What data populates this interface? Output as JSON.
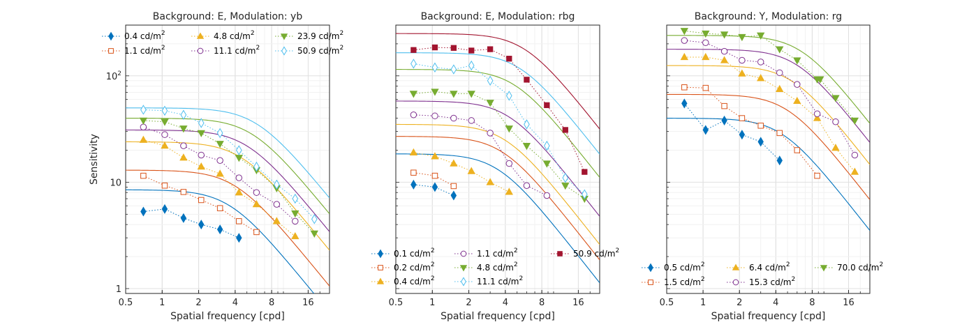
{
  "chart_data": [
    {
      "type": "line",
      "title": "Background: E, Modulation: yb",
      "xlabel": "Spatial frequency [cpd]",
      "ylabel": "Sensitivity",
      "xscale": "log",
      "yscale": "log",
      "xlim": [
        0.5,
        24
      ],
      "ylim": [
        0.9,
        300
      ],
      "xticks": [
        0.5,
        1,
        2,
        4,
        8,
        16
      ],
      "xtick_labels": [
        "0.5",
        "1",
        "2",
        "4",
        "8",
        "16"
      ],
      "yticks": [
        1,
        10,
        100
      ],
      "ytick_labels": [
        "1",
        "10",
        "10²"
      ],
      "grid": true,
      "legend": {
        "placement": "top",
        "columns": 3
      },
      "series": [
        {
          "name": "0.4 cd/m²",
          "label_main": "0.4 cd/m",
          "label_sup": "2",
          "color": "#0072BD",
          "marker": "diamond-filled",
          "x": [
            0.7,
            1.05,
            1.5,
            2.1,
            3.0,
            4.3
          ],
          "y": [
            5.3,
            5.6,
            4.6,
            4.0,
            3.6,
            3.0
          ],
          "fit": {
            "peak": 8.5,
            "fc": 3.6,
            "n": 1.4
          }
        },
        {
          "name": "1.1 cd/m²",
          "label_main": "1.1 cd/m",
          "label_sup": "2",
          "color": "#D95319",
          "marker": "square-open",
          "x": [
            0.7,
            1.05,
            1.5,
            2.1,
            3.0,
            4.3,
            6.0
          ],
          "y": [
            11.5,
            9.3,
            8.1,
            6.8,
            5.7,
            4.3,
            3.4
          ],
          "fit": {
            "peak": 13,
            "fc": 4.0,
            "n": 1.4
          }
        },
        {
          "name": "4.8 cd/m²",
          "label_main": "4.8 cd/m",
          "label_sup": "2",
          "color": "#EDB120",
          "marker": "triangle-up-filled",
          "x": [
            0.7,
            1.05,
            1.5,
            2.1,
            3.0,
            4.3,
            6.0,
            8.8,
            12.5
          ],
          "y": [
            25,
            22,
            17,
            14,
            12,
            8,
            6.2,
            4.3,
            3.1
          ],
          "fit": {
            "peak": 24,
            "fc": 4.5,
            "n": 1.4
          }
        },
        {
          "name": "11.1 cd/m²",
          "label_main": "11.1 cd/m",
          "label_sup": "2",
          "color": "#7E2F8E",
          "marker": "circle-open",
          "x": [
            0.7,
            1.05,
            1.5,
            2.1,
            3.0,
            4.3,
            6.0,
            8.8,
            12.5
          ],
          "y": [
            33,
            28,
            22,
            18,
            16,
            11,
            8,
            6.2,
            4.3
          ],
          "fit": {
            "peak": 31,
            "fc": 5.0,
            "n": 1.4
          }
        },
        {
          "name": "23.9 cd/m²",
          "label_main": "23.9 cd/m",
          "label_sup": "2",
          "color": "#77AC30",
          "marker": "triangle-down-filled",
          "x": [
            0.7,
            1.05,
            1.5,
            2.1,
            3.0,
            4.3,
            6.0,
            8.8,
            12.5,
            18
          ],
          "y": [
            38,
            37,
            32,
            29,
            23,
            17,
            13,
            8.8,
            5.1,
            3.3
          ],
          "fit": {
            "peak": 40,
            "fc": 5.5,
            "n": 1.4
          }
        },
        {
          "name": "50.9 cd/m²",
          "label_main": "50.9 cd/m",
          "label_sup": "2",
          "color": "#4DBEEE",
          "marker": "diamond-open",
          "x": [
            0.7,
            1.05,
            1.5,
            2.1,
            3.0,
            4.3,
            6.0,
            8.8,
            12.5,
            18
          ],
          "y": [
            48,
            47,
            43,
            36,
            29,
            20,
            14,
            9.5,
            7,
            4.5
          ],
          "fit": {
            "peak": 50,
            "fc": 6.0,
            "n": 1.4
          }
        }
      ]
    },
    {
      "type": "line",
      "title": "Background: E, Modulation: rbg",
      "xlabel": "Spatial frequency [cpd]",
      "ylabel": "",
      "xscale": "log",
      "yscale": "log",
      "xlim": [
        0.5,
        24
      ],
      "ylim": [
        0.9,
        300
      ],
      "xticks": [
        0.5,
        1,
        2,
        4,
        8,
        16
      ],
      "xtick_labels": [
        "0.5",
        "1",
        "2",
        "4",
        "8",
        "16"
      ],
      "yticks": [],
      "ytick_labels": [],
      "grid": true,
      "legend": {
        "placement": "bottom",
        "columns": 3
      },
      "series": [
        {
          "name": "0.1 cd/m²",
          "label_main": "0.1 cd/m",
          "label_sup": "2",
          "color": "#0072BD",
          "marker": "diamond-filled",
          "x": [
            0.7,
            1.05,
            1.5
          ],
          "y": [
            9.5,
            9.0,
            7.5
          ],
          "fit": {
            "peak": 18.5,
            "fc": 3.5,
            "n": 1.45
          }
        },
        {
          "name": "0.2 cd/m²",
          "label_main": "0.2 cd/m",
          "label_sup": "2",
          "color": "#D95319",
          "marker": "square-open",
          "x": [
            0.7,
            1.05,
            1.5
          ],
          "y": [
            12.3,
            11.5,
            9.2
          ],
          "fit": {
            "peak": 27,
            "fc": 3.8,
            "n": 1.45
          }
        },
        {
          "name": "0.4 cd/m²",
          "label_main": "0.4 cd/m",
          "label_sup": "2",
          "color": "#EDB120",
          "marker": "triangle-up-filled",
          "x": [
            0.7,
            1.05,
            1.5,
            2.1,
            3.0,
            4.3
          ],
          "y": [
            19,
            17.5,
            15,
            12.7,
            10,
            8.1
          ],
          "fit": {
            "peak": 35,
            "fc": 4.0,
            "n": 1.45
          }
        },
        {
          "name": "1.1 cd/m²",
          "label_main": "1.1 cd/m",
          "label_sup": "2",
          "color": "#7E2F8E",
          "marker": "circle-open",
          "x": [
            0.7,
            1.05,
            1.5,
            2.1,
            3.0,
            4.3,
            6.0,
            8.8
          ],
          "y": [
            43,
            42,
            40,
            38,
            29,
            15,
            9.3,
            7.5
          ],
          "fit": {
            "peak": 58,
            "fc": 4.3,
            "n": 1.45
          }
        },
        {
          "name": "4.8 cd/m²",
          "label_main": "4.8 cd/m",
          "label_sup": "2",
          "color": "#77AC30",
          "marker": "triangle-down-filled",
          "x": [
            0.7,
            1.05,
            1.5,
            2.1,
            3.0,
            4.3,
            6.0,
            8.8,
            12.5,
            18
          ],
          "y": [
            68,
            71,
            68,
            68,
            56,
            32,
            22,
            15,
            9.3,
            7
          ],
          "fit": {
            "peak": 115,
            "fc": 4.8,
            "n": 1.45
          }
        },
        {
          "name": "11.1 cd/m²",
          "label_main": "11.1 cd/m",
          "label_sup": "2",
          "color": "#4DBEEE",
          "marker": "diamond-open",
          "x": [
            0.7,
            1.05,
            1.5,
            2.1,
            3.0,
            4.3,
            6.0,
            8.8,
            12.5,
            18
          ],
          "y": [
            130,
            120,
            115,
            125,
            90,
            65,
            35,
            22,
            11,
            7.7
          ],
          "fit": {
            "peak": 165,
            "fc": 5.3,
            "n": 1.45
          }
        },
        {
          "name": "50.9 cd/m²",
          "label_main": "50.9 cd/m",
          "label_sup": "2",
          "color": "#A2142F",
          "marker": "square-filled",
          "x": [
            0.7,
            1.05,
            1.5,
            2.1,
            3.0,
            4.3,
            6.0,
            8.8,
            12.5,
            18
          ],
          "y": [
            175,
            185,
            183,
            173,
            178,
            145,
            92,
            53,
            31,
            12.5
          ],
          "fit": {
            "peak": 250,
            "fc": 5.8,
            "n": 1.45
          }
        }
      ]
    },
    {
      "type": "line",
      "title": "Background: Y, Modulation: rg",
      "xlabel": "Spatial frequency [cpd]",
      "ylabel": "",
      "xscale": "log",
      "yscale": "log",
      "xlim": [
        0.5,
        24
      ],
      "ylim": [
        0.9,
        300
      ],
      "xticks": [
        0.5,
        1,
        2,
        4,
        8,
        16
      ],
      "xtick_labels": [
        "0.5",
        "1",
        "2",
        "4",
        "8",
        "16"
      ],
      "yticks": [],
      "ytick_labels": [],
      "grid": true,
      "legend": {
        "placement": "bottom",
        "columns": 3
      },
      "series": [
        {
          "name": "0.5 cd/m²",
          "label_main": "0.5 cd/m",
          "label_sup": "2",
          "color": "#0072BD",
          "marker": "diamond-filled",
          "x": [
            0.7,
            1.05,
            1.5,
            2.1,
            3.0,
            4.3
          ],
          "y": [
            55,
            31,
            38,
            28,
            24,
            16
          ],
          "fit": {
            "peak": 40,
            "fc": 4.5,
            "n": 1.45
          }
        },
        {
          "name": "1.5 cd/m²",
          "label_main": "1.5 cd/m",
          "label_sup": "2",
          "color": "#D95319",
          "marker": "square-open",
          "x": [
            0.7,
            1.05,
            1.5,
            2.1,
            3.0,
            4.3,
            6.0,
            8.8
          ],
          "y": [
            78,
            77,
            52,
            40,
            34,
            29,
            20,
            11.5
          ],
          "fit": {
            "peak": 67,
            "fc": 5.0,
            "n": 1.45
          }
        },
        {
          "name": "6.4 cd/m²",
          "label_main": "6.4 cd/m",
          "label_sup": "2",
          "color": "#EDB120",
          "marker": "triangle-up-filled",
          "x": [
            0.7,
            1.05,
            1.5,
            2.1,
            3.0,
            4.3,
            6.0,
            8.8,
            12.5,
            18
          ],
          "y": [
            150,
            150,
            140,
            105,
            95,
            75,
            58,
            40,
            21,
            12.5
          ],
          "fit": {
            "peak": 125,
            "fc": 5.5,
            "n": 1.45
          }
        },
        {
          "name": "15.3 cd/m²",
          "label_main": "15.3 cd/m",
          "label_sup": "2",
          "color": "#7E2F8E",
          "marker": "circle-open",
          "x": [
            0.7,
            1.05,
            1.5,
            2.1,
            3.0,
            4.3,
            6.0,
            8.8,
            12.5,
            18
          ],
          "y": [
            215,
            205,
            170,
            140,
            135,
            107,
            83,
            44,
            37,
            18
          ],
          "fit": {
            "peak": 178,
            "fc": 6.0,
            "n": 1.45
          }
        },
        {
          "name": "70.0 cd/m²",
          "label_main": "70.0 cd/m",
          "label_sup": "2",
          "color": "#77AC30",
          "marker": "triangle-down-filled",
          "x": [
            0.7,
            1.05,
            1.5,
            2.1,
            3.0,
            4.3,
            6.0,
            8.8,
            9.3,
            12.5,
            18
          ],
          "y": [
            265,
            250,
            245,
            232,
            240,
            178,
            140,
            93,
            93,
            62,
            38
          ],
          "fit": {
            "peak": 240,
            "fc": 6.5,
            "n": 1.45
          }
        }
      ]
    }
  ]
}
